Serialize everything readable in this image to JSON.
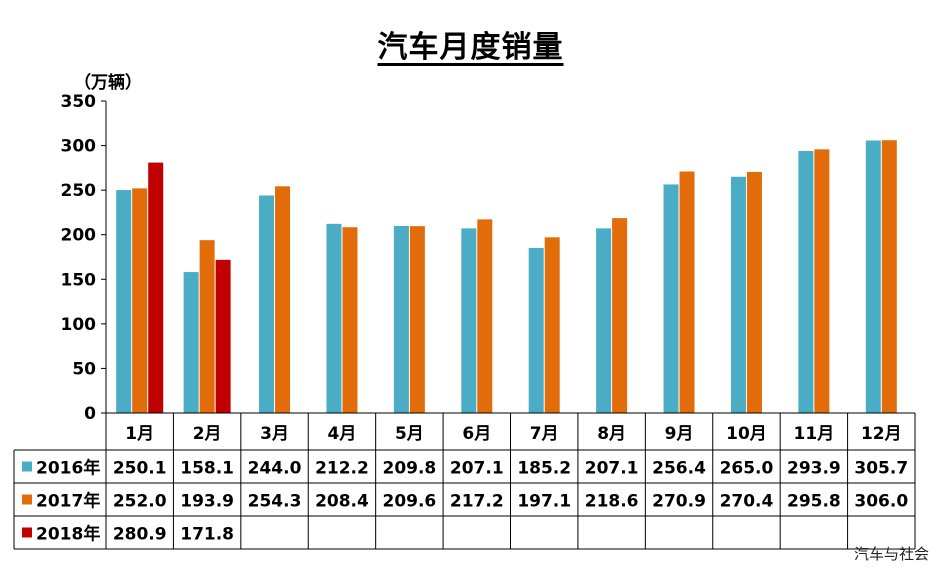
{
  "chart_data": {
    "type": "bar",
    "title": "汽车月度销量",
    "ylabel": "（万辆）",
    "ylim": [
      0,
      350
    ],
    "yticks": [
      "0",
      "50",
      "100",
      "150",
      "200",
      "250",
      "300",
      "350"
    ],
    "categories": [
      "1月",
      "2月",
      "3月",
      "4月",
      "5月",
      "6月",
      "7月",
      "8月",
      "9月",
      "10月",
      "11月",
      "12月"
    ],
    "series": [
      {
        "name": "2016年",
        "color": "#4BACC6",
        "values": [
          250.1,
          158.1,
          244.0,
          212.2,
          209.8,
          207.1,
          185.2,
          207.1,
          256.4,
          265.0,
          293.9,
          305.7
        ],
        "labels": [
          "250.1",
          "158.1",
          "244.0",
          "212.2",
          "209.8",
          "207.1",
          "185.2",
          "207.1",
          "256.4",
          "265.0",
          "293.9",
          "305.7"
        ]
      },
      {
        "name": "2017年",
        "color": "#E36C0A",
        "values": [
          252.0,
          193.9,
          254.3,
          208.4,
          209.6,
          217.2,
          197.1,
          218.6,
          270.9,
          270.4,
          295.8,
          306.0
        ],
        "labels": [
          "252.0",
          "193.9",
          "254.3",
          "208.4",
          "209.6",
          "217.2",
          "197.1",
          "218.6",
          "270.9",
          "270.4",
          "295.8",
          "306.0"
        ]
      },
      {
        "name": "2018年",
        "color": "#C00000",
        "values": [
          280.9,
          171.8,
          null,
          null,
          null,
          null,
          null,
          null,
          null,
          null,
          null,
          null
        ],
        "labels": [
          "280.9",
          "171.8",
          "",
          "",
          "",
          "",
          "",
          "",
          "",
          "",
          "",
          ""
        ]
      }
    ],
    "grid": false,
    "legend": "data-table"
  },
  "watermark": "汽车与社会"
}
